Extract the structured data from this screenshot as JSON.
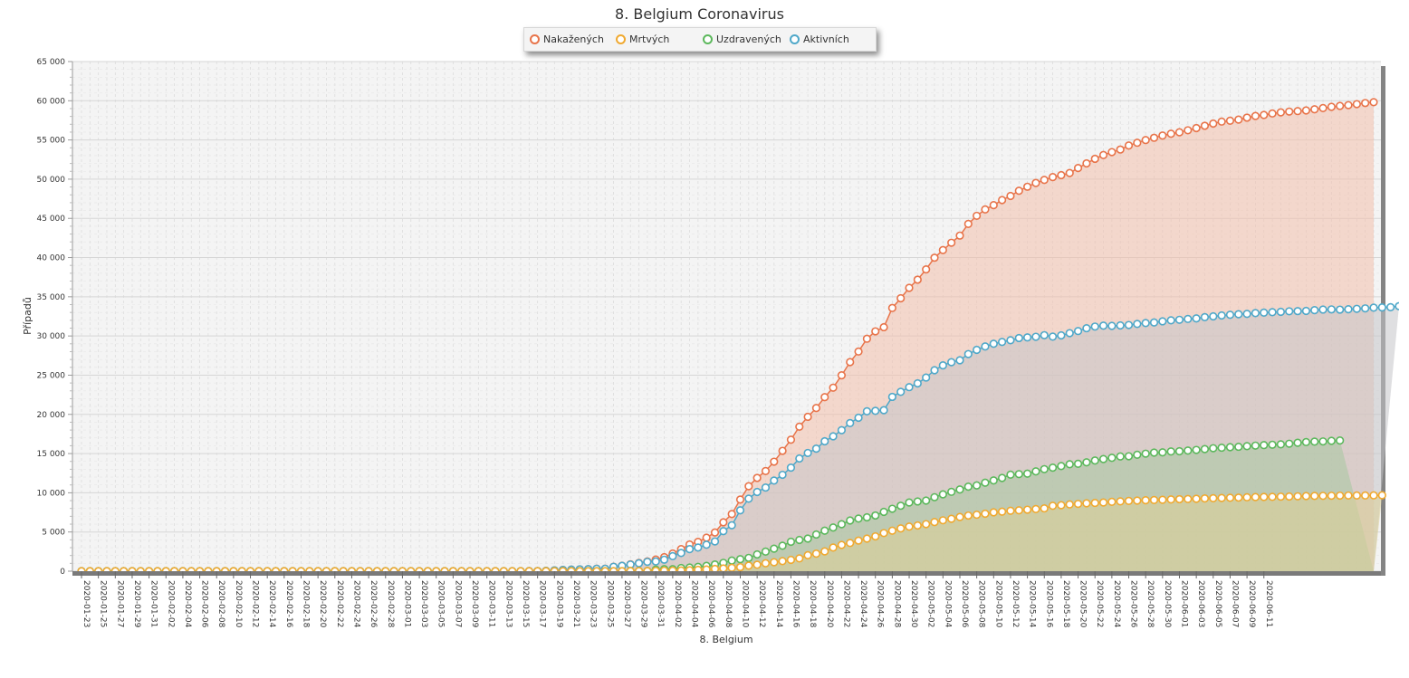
{
  "chart_data": {
    "type": "line",
    "title": "8. Belgium Coronavirus",
    "xlabel": "8. Belgium",
    "ylabel": "Případů",
    "ylim": [
      0,
      65000
    ],
    "yticks": [
      0,
      5000,
      10000,
      15000,
      20000,
      25000,
      30000,
      35000,
      40000,
      45000,
      50000,
      55000,
      60000,
      65000
    ],
    "ytick_labels": [
      "0",
      "5 000",
      "10 000",
      "15 000",
      "20 000",
      "25 000",
      "30 000",
      "35 000",
      "40 000",
      "45 000",
      "50 000",
      "55 000",
      "60 000",
      "65 000"
    ],
    "x_start": "2020-01-23",
    "x_end": "2020-06-11",
    "xtick_labels": [
      "2020-01-23",
      "2020-01-25",
      "2020-01-27",
      "2020-01-29",
      "2020-01-31",
      "2020-02-02",
      "2020-02-04",
      "2020-02-06",
      "2020-02-08",
      "2020-02-10",
      "2020-02-12",
      "2020-02-14",
      "2020-02-16",
      "2020-02-18",
      "2020-02-20",
      "2020-02-22",
      "2020-02-24",
      "2020-02-26",
      "2020-02-28",
      "2020-03-01",
      "2020-03-03",
      "2020-03-05",
      "2020-03-07",
      "2020-03-09",
      "2020-03-11",
      "2020-03-13",
      "2020-03-15",
      "2020-03-17",
      "2020-03-19",
      "2020-03-21",
      "2020-03-23",
      "2020-03-25",
      "2020-03-27",
      "2020-03-29",
      "2020-03-31",
      "2020-04-02",
      "2020-04-04",
      "2020-04-06",
      "2020-04-08",
      "2020-04-10",
      "2020-04-12",
      "2020-04-14",
      "2020-04-16",
      "2020-04-18",
      "2020-04-20",
      "2020-04-22",
      "2020-04-24",
      "2020-04-26",
      "2020-04-28",
      "2020-04-30",
      "2020-05-02",
      "2020-05-04",
      "2020-05-06",
      "2020-05-08",
      "2020-05-10",
      "2020-05-12",
      "2020-05-14",
      "2020-05-16",
      "2020-05-18",
      "2020-05-20",
      "2020-05-22",
      "2020-05-24",
      "2020-05-26",
      "2020-05-28",
      "2020-05-30",
      "2020-06-01",
      "2020-06-03",
      "2020-06-05",
      "2020-06-07",
      "2020-06-09",
      "2020-06-11"
    ],
    "grid": true,
    "legend_position": "top-center",
    "series": [
      {
        "name": "Nakažených",
        "color": "#e8744a",
        "fill": "#f2c0ab",
        "values": [
          0,
          0,
          0,
          0,
          0,
          0,
          0,
          0,
          0,
          0,
          0,
          0,
          0,
          0,
          0,
          0,
          0,
          0,
          0,
          0,
          0,
          0,
          0,
          0,
          0,
          0,
          0,
          0,
          0,
          0,
          0,
          0,
          0,
          0,
          0,
          0,
          0,
          0,
          0,
          0,
          0,
          0,
          0,
          0,
          0,
          0,
          0,
          0,
          0,
          0,
          0,
          1,
          8,
          13,
          23,
          50,
          109,
          169,
          200,
          239,
          267,
          314,
          314,
          559,
          689,
          886,
          1058,
          1243,
          1486,
          1795,
          2257,
          2815,
          3401,
          3743,
          4269,
          4937,
          6235,
          7284,
          9134,
          10836,
          11899,
          12775,
          13964,
          15348,
          16770,
          18431,
          19691,
          20814,
          22194,
          23403,
          24983,
          26667,
          28018,
          29647,
          30589,
          31119,
          33573,
          34809,
          36138,
          37183,
          38496,
          39983,
          40956,
          41889,
          42797,
          44293,
          45325,
          46134,
          46687,
          47334,
          47859,
          48519,
          49032,
          49517,
          49906,
          50267,
          50509,
          50781,
          51420,
          52011,
          52596,
          53081,
          53449,
          53779,
          54288,
          54644,
          54989,
          55280,
          55559,
          55791,
          55983,
          56235,
          56511,
          56810,
          57092,
          57342,
          57455,
          57592,
          57849,
          58061,
          58186,
          58381,
          58517,
          58615,
          58685,
          58767,
          58907,
          59072,
          59226,
          59348,
          59437,
          59569,
          59711,
          59819
        ]
      },
      {
        "name": "Mrtvých",
        "color": "#f0a930",
        "fill": "#dccf95",
        "values": [
          0,
          0,
          0,
          0,
          0,
          0,
          0,
          0,
          0,
          0,
          0,
          0,
          0,
          0,
          0,
          0,
          0,
          0,
          0,
          0,
          0,
          0,
          0,
          0,
          0,
          0,
          0,
          0,
          0,
          0,
          0,
          0,
          0,
          0,
          0,
          0,
          0,
          0,
          0,
          0,
          0,
          0,
          0,
          0,
          0,
          0,
          0,
          0,
          0,
          0,
          0,
          0,
          0,
          0,
          0,
          0,
          0,
          0,
          0,
          0,
          3,
          3,
          4,
          4,
          5,
          10,
          14,
          21,
          37,
          67,
          75,
          88,
          122,
          178,
          220,
          289,
          353,
          431,
          513,
          705,
          828,
          1011,
          1143,
          1283,
          1447,
          1632,
          2035,
          2240,
          2523,
          3019,
          3346,
          3600,
          3903,
          4157,
          4440,
          4857,
          5163,
          5453,
          5683,
          5828,
          5998,
          6262,
          6490,
          6679,
          6917,
          7094,
          7207,
          7331,
          7501,
          7594,
          7703,
          7765,
          7844,
          7924,
          8016,
          8339,
          8415,
          8521,
          8581,
          8656,
          8707,
          8761,
          8843,
          8903,
          8959,
          9005,
          9052,
          9080,
          9108,
          9150,
          9186,
          9212,
          9237,
          9280,
          9312,
          9334,
          9364,
          9388,
          9430,
          9453,
          9467,
          9486,
          9505,
          9522,
          9548,
          9580,
          9595,
          9606,
          9619,
          9636,
          9650,
          9656,
          9661,
          9675,
          9683
        ]
      },
      {
        "name": "Uzdravených",
        "color": "#5cb85c",
        "fill": "#a8c8a0",
        "values": [
          0,
          0,
          0,
          0,
          0,
          0,
          0,
          0,
          0,
          0,
          0,
          0,
          0,
          0,
          0,
          0,
          0,
          0,
          0,
          0,
          0,
          0,
          0,
          0,
          0,
          0,
          0,
          0,
          0,
          0,
          0,
          0,
          0,
          0,
          0,
          0,
          0,
          0,
          0,
          0,
          0,
          0,
          0,
          0,
          0,
          0,
          0,
          0,
          0,
          0,
          0,
          0,
          0,
          0,
          0,
          0,
          0,
          1,
          1,
          1,
          1,
          1,
          1,
          1,
          2,
          31,
          31,
          31,
          204,
          263,
          263,
          401,
          461,
          547,
          675,
          858,
          1063,
          1359,
          1527,
          1696,
          2132,
          2495,
          2872,
          3247,
          3751,
          3986,
          4157,
          4681,
          5164,
          5568,
          5986,
          6463,
          6707,
          6868,
          7107,
          7562,
          7961,
          8348,
          8757,
          8895,
          9002,
          9433,
          9800,
          10122,
          10417,
          10785,
          10943,
          11283,
          11576,
          11892,
          12309,
          12378,
          12441,
          12731,
          13011,
          13201,
          13411,
          13642,
          13697,
          13882,
          14111,
          14301,
          14460,
          14630,
          14657,
          14847,
          14988,
          15123,
          15155,
          15272,
          15297,
          15382,
          15465,
          15572,
          15682,
          15751,
          15820,
          15867,
          15946,
          16013,
          16083,
          16128,
          16178,
          16258,
          16382,
          16472,
          16528,
          16548,
          16627,
          16664
        ]
      },
      {
        "name": "Aktivních",
        "color": "#4fa8c9",
        "fill": "#c5c5c8",
        "values": [
          0,
          0,
          0,
          0,
          0,
          0,
          0,
          0,
          0,
          0,
          0,
          0,
          0,
          0,
          0,
          0,
          0,
          0,
          0,
          0,
          0,
          0,
          0,
          0,
          0,
          0,
          0,
          0,
          0,
          0,
          0,
          0,
          0,
          0,
          0,
          0,
          0,
          0,
          0,
          0,
          0,
          0,
          0,
          0,
          0,
          0,
          0,
          0,
          0,
          0,
          0,
          1,
          8,
          13,
          23,
          50,
          109,
          169,
          200,
          239,
          263,
          313,
          313,
          558,
          682,
          845,
          1013,
          1191,
          1245,
          1465,
          1919,
          2326,
          2818,
          3018,
          3374,
          3790,
          5109,
          5854,
          7765,
          9253,
          10100,
          10671,
          11561,
          12291,
          13201,
          14380,
          15075,
          15630,
          16566,
          17206,
          17978,
          18893,
          19568,
          20393,
          20454,
          20540,
          22232,
          22876,
          23472,
          23960,
          24698,
          25633,
          26254,
          26654,
          26902,
          27688,
          28228,
          28660,
          29009,
          29237,
          29456,
          29736,
          29815,
          29898,
          30097,
          29919,
          30078,
          30359,
          30629,
          30990,
          31195,
          31319,
          31291,
          31347,
          31397,
          31537,
          31649,
          31718,
          31871,
          31999,
          32061,
          32173,
          32242,
          32399,
          32502,
          32617,
          32703,
          32776,
          32820,
          32918,
          32975,
          33031,
          33080,
          33143,
          33171,
          33196,
          33290,
          33370,
          33388,
          33359,
          33407,
          33461,
          33520,
          33612,
          33644,
          33672,
          33806
        ]
      }
    ]
  }
}
